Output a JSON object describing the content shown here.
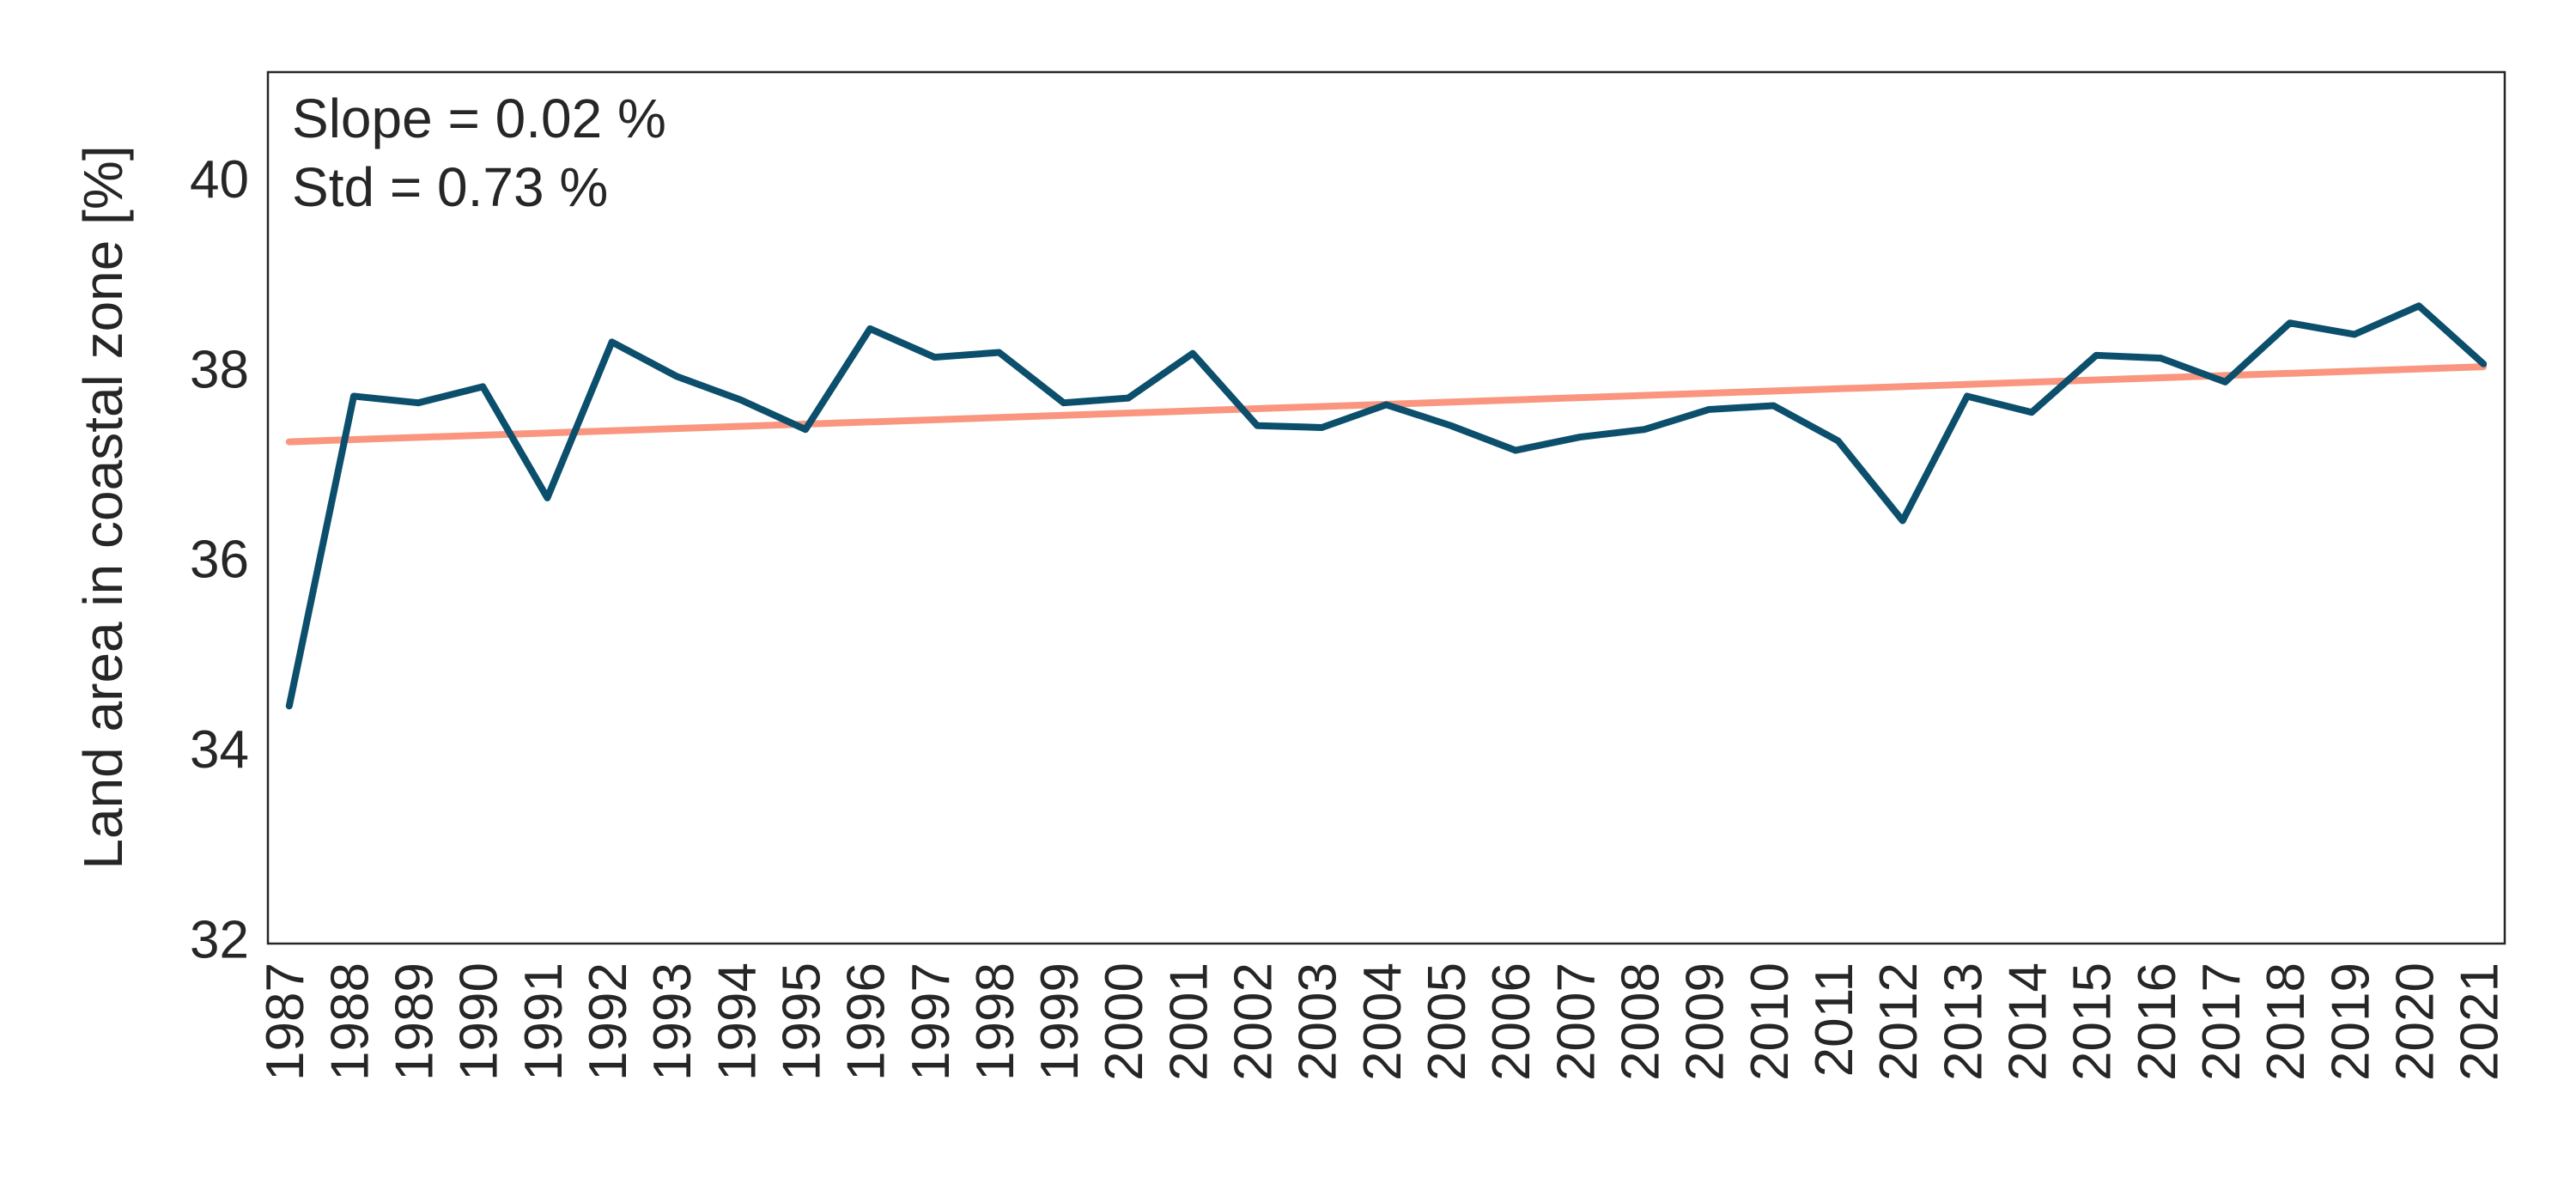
{
  "chart_data": {
    "type": "line",
    "y_label": "Land area in coastal zone [%]",
    "annotations": [
      "Slope = 0.02 %",
      "Std = 0.73 %"
    ],
    "x": [
      1987,
      1988,
      1989,
      1990,
      1991,
      1992,
      1993,
      1994,
      1995,
      1996,
      1997,
      1998,
      1999,
      2000,
      2001,
      2002,
      2003,
      2004,
      2005,
      2006,
      2007,
      2008,
      2009,
      2010,
      2011,
      2012,
      2013,
      2014,
      2015,
      2016,
      2017,
      2018,
      2019,
      2020,
      2021
    ],
    "series": [
      {
        "color": "#0b4f6c",
        "values": [
          34.5,
          37.76,
          37.69,
          37.86,
          36.69,
          38.33,
          37.97,
          37.72,
          37.41,
          38.47,
          38.17,
          38.22,
          37.69,
          37.74,
          38.21,
          37.45,
          37.43,
          37.67,
          37.45,
          37.19,
          37.33,
          37.41,
          37.62,
          37.66,
          37.29,
          36.45,
          37.76,
          37.59,
          38.19,
          38.16,
          37.91,
          38.53,
          38.41,
          38.71,
          38.1
        ]
      },
      {
        "color": "#fa9680",
        "x": [
          1987,
          2021
        ],
        "values": [
          37.28,
          38.07
        ]
      }
    ],
    "xlim": [
      1986.67,
      2021.33
    ],
    "xticks": [
      1987,
      1988,
      1989,
      1990,
      1991,
      1992,
      1993,
      1994,
      1995,
      1996,
      1997,
      1998,
      1999,
      2000,
      2001,
      2002,
      2003,
      2004,
      2005,
      2006,
      2007,
      2008,
      2009,
      2010,
      2011,
      2012,
      2013,
      2014,
      2015,
      2016,
      2017,
      2018,
      2019,
      2020,
      2021
    ],
    "ylim": [
      32,
      41.17
    ],
    "yticks": [
      32,
      34,
      36,
      38,
      40
    ],
    "grid": false
  }
}
